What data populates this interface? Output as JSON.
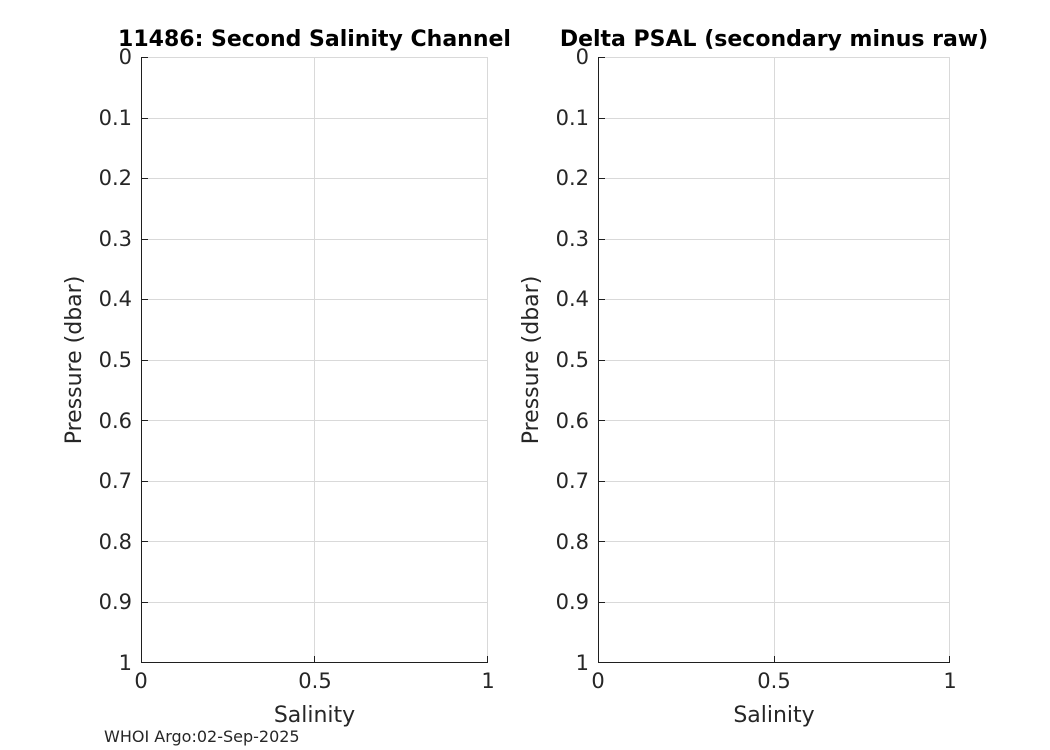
{
  "figure": {
    "footer": "WHOI Argo:02-Sep-2025",
    "background_color": "#ffffff",
    "spine_color": "#1f1f1f",
    "grid_color": "#d9d9d9",
    "tick_color": "#1f1f1f",
    "title_color": "#000000",
    "label_color": "#262626"
  },
  "chart_data": [
    {
      "type": "line",
      "title": "11486: Second Salinity Channel",
      "xlabel": "Salinity",
      "ylabel": "Pressure (dbar)",
      "xlim": [
        0,
        1
      ],
      "ylim": [
        0,
        1
      ],
      "ydir": "reverse",
      "grid": true,
      "xticks": [
        0,
        0.5,
        1
      ],
      "xtick_labels": [
        "0",
        "0.5",
        "1"
      ],
      "yticks": [
        0,
        0.1,
        0.2,
        0.3,
        0.4,
        0.5,
        0.6,
        0.7,
        0.8,
        0.9,
        1
      ],
      "ytick_labels": [
        "0",
        "0.1",
        "0.2",
        "0.3",
        "0.4",
        "0.5",
        "0.6",
        "0.7",
        "0.8",
        "0.9",
        "1"
      ],
      "series": []
    },
    {
      "type": "line",
      "title": "Delta PSAL (secondary minus raw)",
      "xlabel": "Salinity",
      "ylabel": "Pressure (dbar)",
      "xlim": [
        0,
        1
      ],
      "ylim": [
        0,
        1
      ],
      "ydir": "reverse",
      "grid": true,
      "xticks": [
        0,
        0.5,
        1
      ],
      "xtick_labels": [
        "0",
        "0.5",
        "1"
      ],
      "yticks": [
        0,
        0.1,
        0.2,
        0.3,
        0.4,
        0.5,
        0.6,
        0.7,
        0.8,
        0.9,
        1
      ],
      "ytick_labels": [
        "0",
        "0.1",
        "0.2",
        "0.3",
        "0.4",
        "0.5",
        "0.6",
        "0.7",
        "0.8",
        "0.9",
        "1"
      ],
      "series": []
    }
  ]
}
